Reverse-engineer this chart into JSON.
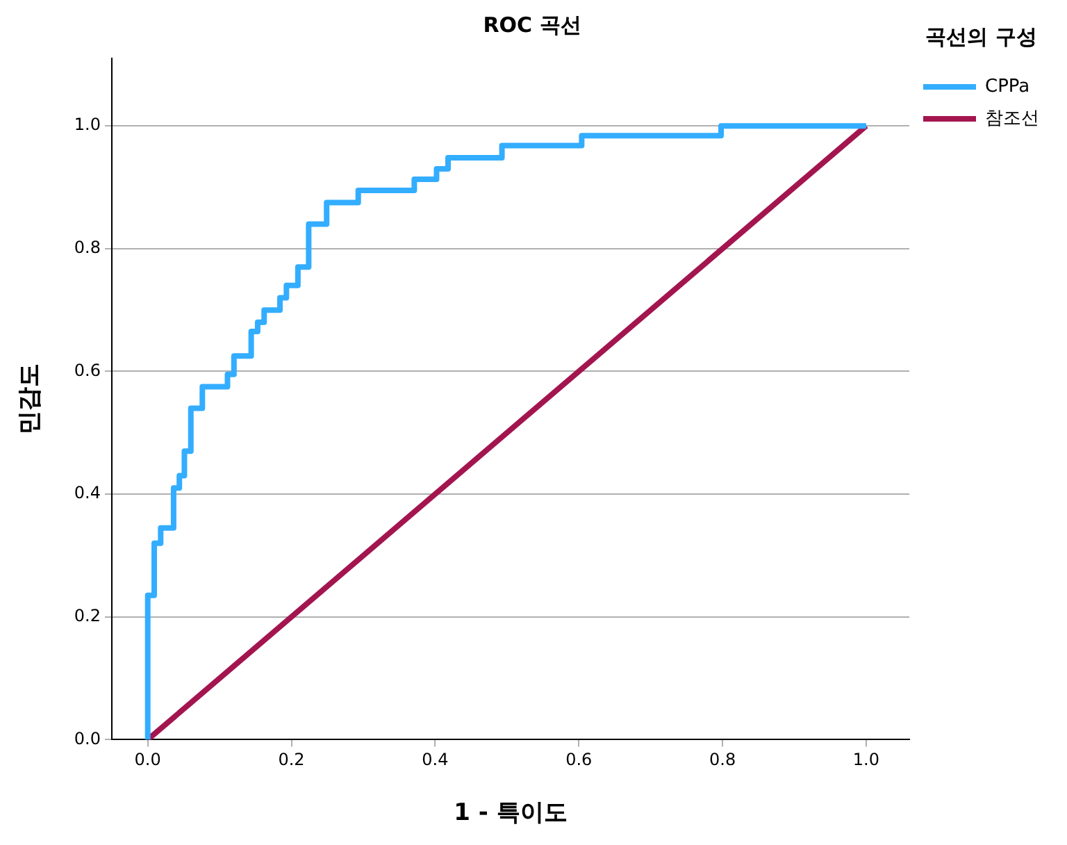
{
  "chart_data": {
    "type": "step",
    "title": "ROC 곡선",
    "xlabel": "1 - 특이도",
    "ylabel": "민감도",
    "legend_title": "곡선의 구성",
    "legend": "top right",
    "grid": "y",
    "line_style": "solid",
    "marker": "none",
    "xlim": [
      -0.05,
      1.06
    ],
    "ylim": [
      0,
      1.11
    ],
    "xticks": [
      {
        "value": 0,
        "label": "0.0"
      },
      {
        "value": 0.2,
        "label": "0.2"
      },
      {
        "value": 0.4,
        "label": "0.4"
      },
      {
        "value": 0.6,
        "label": "0.6"
      },
      {
        "value": 0.8,
        "label": "0.8"
      },
      {
        "value": 1,
        "label": "1.0"
      }
    ],
    "yticks": [
      {
        "value": 0,
        "label": "0.0"
      },
      {
        "value": 0.2,
        "label": "0.2"
      },
      {
        "value": 0.4,
        "label": "0.4"
      },
      {
        "value": 0.6,
        "label": "0.6"
      },
      {
        "value": 0.8,
        "label": "0.8"
      },
      {
        "value": 1,
        "label": "1.0"
      }
    ],
    "series": [
      {
        "name": "CPPa",
        "color": "#33adff",
        "type": "step",
        "x": [
          0,
          0.009,
          0.018,
          0.036,
          0.044,
          0.051,
          0.06,
          0.076,
          0.111,
          0.12,
          0.144,
          0.153,
          0.162,
          0.184,
          0.193,
          0.209,
          0.224,
          0.249,
          0.293,
          0.371,
          0.402,
          0.418,
          0.493,
          0.604,
          0.798,
          1
        ],
        "values": [
          0,
          0.235,
          0.32,
          0.345,
          0.41,
          0.43,
          0.47,
          0.54,
          0.575,
          0.595,
          0.625,
          0.665,
          0.68,
          0.7,
          0.72,
          0.74,
          0.77,
          0.84,
          0.875,
          0.895,
          0.913,
          0.93,
          0.948,
          0.968,
          0.984,
          1
        ]
      },
      {
        "name": "참조선",
        "color": "#a3154f",
        "type": "line",
        "x": [
          0,
          1
        ],
        "values": [
          0,
          1
        ]
      }
    ]
  }
}
